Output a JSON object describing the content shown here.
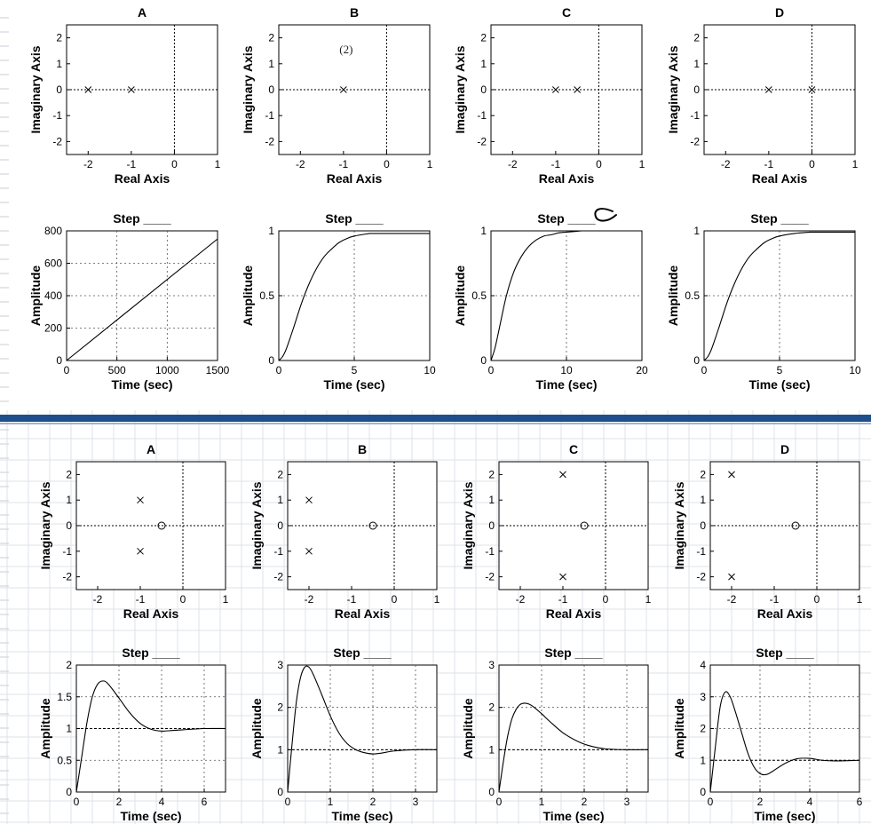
{
  "chart_data": [
    {
      "type": "scatter",
      "title": "A",
      "xlabel": "Real Axis",
      "ylabel": "Imaginary Axis",
      "xlim": [
        -2.5,
        1
      ],
      "ylim": [
        -2.5,
        2.5
      ],
      "xticks": [
        "-2",
        "-1",
        "0",
        "1"
      ],
      "yticks": [
        "2",
        "1",
        "0",
        "-1",
        "-2"
      ],
      "poles": [
        {
          "x": -2,
          "y": 0
        },
        {
          "x": -1,
          "y": 0
        }
      ],
      "zeros": [],
      "annotations": []
    },
    {
      "type": "scatter",
      "title": "B",
      "xlabel": "Real Axis",
      "ylabel": "Imaginary Axis",
      "xlim": [
        -2.5,
        1
      ],
      "ylim": [
        -2.5,
        2.5
      ],
      "xticks": [
        "-2",
        "-1",
        "0",
        "1"
      ],
      "yticks": [
        "2",
        "1",
        "0",
        "-1",
        "-2"
      ],
      "poles": [
        {
          "x": -1,
          "y": 0
        }
      ],
      "zeros": [],
      "annotations": [
        {
          "text": "(2)",
          "x": -1,
          "y": 1.4
        }
      ]
    },
    {
      "type": "scatter",
      "title": "C",
      "xlabel": "Real Axis",
      "ylabel": "Imaginary Axis",
      "xlim": [
        -2.5,
        1
      ],
      "ylim": [
        -2.5,
        2.5
      ],
      "xticks": [
        "-2",
        "-1",
        "0",
        "1"
      ],
      "yticks": [
        "2",
        "1",
        "0",
        "-1",
        "-2"
      ],
      "poles": [
        {
          "x": -1,
          "y": 0
        },
        {
          "x": -0.5,
          "y": 0
        }
      ],
      "zeros": [],
      "annotations": []
    },
    {
      "type": "scatter",
      "title": "D",
      "xlabel": "Real Axis",
      "ylabel": "Imaginary Axis",
      "xlim": [
        -2.5,
        1
      ],
      "ylim": [
        -2.5,
        2.5
      ],
      "xticks": [
        "-2",
        "-1",
        "0",
        "1"
      ],
      "yticks": [
        "2",
        "1",
        "0",
        "-1",
        "-2"
      ],
      "poles": [
        {
          "x": -1,
          "y": 0
        },
        {
          "x": 0,
          "y": 0
        }
      ],
      "zeros": [],
      "annotations": []
    },
    {
      "type": "line",
      "title": "Step ____",
      "xlabel": "Time (sec)",
      "ylabel": "Amplitude",
      "xlim": [
        0,
        1500
      ],
      "ylim": [
        0,
        800
      ],
      "xticks": [
        "0",
        "500",
        "1000",
        "1500"
      ],
      "yticks": [
        "800",
        "600",
        "400",
        "200",
        "0"
      ],
      "series": [
        {
          "x": [
            0,
            1500
          ],
          "y": [
            0,
            750
          ]
        }
      ],
      "reference": null
    },
    {
      "type": "line",
      "title": "Step ____",
      "xlabel": "Time (sec)",
      "ylabel": "Amplitude",
      "xlim": [
        0,
        10
      ],
      "ylim": [
        0,
        1
      ],
      "xticks": [
        "0",
        "5",
        "10"
      ],
      "yticks": [
        "1",
        "0.5",
        "0"
      ],
      "series": [
        {
          "x": [
            0,
            0.25,
            0.5,
            1,
            1.5,
            2,
            2.5,
            3,
            3.5,
            4,
            4.5,
            5,
            6
          ],
          "y": [
            0,
            0.03,
            0.09,
            0.26,
            0.44,
            0.59,
            0.71,
            0.8,
            0.86,
            0.91,
            0.94,
            0.96,
            0.98
          ]
        }
      ],
      "reference": 1
    },
    {
      "type": "line",
      "title": "Step ____",
      "xlabel": "Time (sec)",
      "ylabel": "Amplitude",
      "xlim": [
        0,
        20
      ],
      "ylim": [
        0,
        1
      ],
      "xticks": [
        "0",
        "10",
        "20"
      ],
      "yticks": [
        "1",
        "0.5",
        "0"
      ],
      "series": [
        {
          "x": [
            0,
            0.5,
            1,
            2,
            3,
            4,
            5,
            6,
            7,
            8,
            9,
            10,
            12
          ],
          "y": [
            0,
            0.09,
            0.22,
            0.49,
            0.68,
            0.8,
            0.88,
            0.93,
            0.96,
            0.97,
            0.985,
            0.99,
            1.0
          ]
        }
      ],
      "reference": 1
    },
    {
      "type": "line",
      "title": "Step ____",
      "xlabel": "Time (sec)",
      "ylabel": "Amplitude",
      "xlim": [
        0,
        10
      ],
      "ylim": [
        0,
        1
      ],
      "xticks": [
        "0",
        "5",
        "10"
      ],
      "yticks": [
        "1",
        "0.5",
        "0"
      ],
      "series": [
        {
          "x": [
            0,
            0.25,
            0.5,
            1,
            1.5,
            2,
            2.5,
            3,
            3.5,
            4,
            4.5,
            5,
            6,
            7
          ],
          "y": [
            0,
            0.03,
            0.09,
            0.26,
            0.44,
            0.59,
            0.71,
            0.8,
            0.86,
            0.91,
            0.94,
            0.96,
            0.98,
            0.99
          ]
        }
      ],
      "reference": 1
    },
    {
      "type": "scatter",
      "title": "A",
      "xlabel": "Real Axis",
      "ylabel": "Imaginary Axis",
      "xlim": [
        -2.5,
        1
      ],
      "ylim": [
        -2.5,
        2.5
      ],
      "xticks": [
        "-2",
        "-1",
        "0",
        "1"
      ],
      "yticks": [
        "2",
        "1",
        "0",
        "-1",
        "-2"
      ],
      "poles": [
        {
          "x": -1,
          "y": 1
        },
        {
          "x": -1,
          "y": -1
        }
      ],
      "zeros": [
        {
          "x": -0.5,
          "y": 0
        }
      ],
      "annotations": []
    },
    {
      "type": "scatter",
      "title": "B",
      "xlabel": "Real Axis",
      "ylabel": "Imaginary Axis",
      "xlim": [
        -2.5,
        1
      ],
      "ylim": [
        -2.5,
        2.5
      ],
      "xticks": [
        "-2",
        "-1",
        "0",
        "1"
      ],
      "yticks": [
        "2",
        "1",
        "0",
        "-1",
        "-2"
      ],
      "poles": [
        {
          "x": -2,
          "y": 1
        },
        {
          "x": -2,
          "y": -1
        }
      ],
      "zeros": [
        {
          "x": -0.5,
          "y": 0
        }
      ],
      "annotations": []
    },
    {
      "type": "scatter",
      "title": "C",
      "xlabel": "Real Axis",
      "ylabel": "Imaginary Axis",
      "xlim": [
        -2.5,
        1
      ],
      "ylim": [
        -2.5,
        2.5
      ],
      "xticks": [
        "-2",
        "-1",
        "0",
        "1"
      ],
      "yticks": [
        "2",
        "1",
        "0",
        "-1",
        "-2"
      ],
      "poles": [
        {
          "x": -1,
          "y": 2
        },
        {
          "x": -1,
          "y": -2
        }
      ],
      "zeros": [
        {
          "x": -0.5,
          "y": 0
        }
      ],
      "annotations": []
    },
    {
      "type": "scatter",
      "title": "D",
      "xlabel": "Real Axis",
      "ylabel": "Imaginary Axis",
      "xlim": [
        -2.5,
        1
      ],
      "ylim": [
        -2.5,
        2.5
      ],
      "xticks": [
        "-2",
        "-1",
        "0",
        "1"
      ],
      "yticks": [
        "2",
        "1",
        "0",
        "-1",
        "-2"
      ],
      "poles": [
        {
          "x": -2,
          "y": 2
        },
        {
          "x": -2,
          "y": -2
        }
      ],
      "zeros": [
        {
          "x": -0.5,
          "y": 0
        }
      ],
      "annotations": []
    },
    {
      "type": "line",
      "title": "Step ____",
      "xlabel": "Time (sec)",
      "ylabel": "Amplitude",
      "xlim": [
        0,
        7
      ],
      "ylim": [
        0,
        2
      ],
      "xticks": [
        "0",
        "2",
        "4",
        "6"
      ],
      "yticks": [
        "2",
        "1.5",
        "1",
        "0.5",
        "0"
      ],
      "series": [
        {
          "x": [
            0,
            0.25,
            0.5,
            0.75,
            1,
            1.25,
            1.5,
            2,
            2.5,
            3,
            3.5,
            4,
            4.5,
            5,
            6,
            7
          ],
          "y": [
            0,
            0.55,
            1.1,
            1.5,
            1.7,
            1.75,
            1.7,
            1.48,
            1.25,
            1.08,
            0.99,
            0.96,
            0.97,
            0.98,
            1,
            1
          ]
        }
      ],
      "reference": 1
    },
    {
      "type": "line",
      "title": "Step ____",
      "xlabel": "Time (sec)",
      "ylabel": "Amplitude",
      "xlim": [
        0,
        3.5
      ],
      "ylim": [
        0,
        3
      ],
      "xticks": [
        "0",
        "1",
        "2",
        "3"
      ],
      "yticks": [
        "3",
        "2",
        "1",
        "0"
      ],
      "series": [
        {
          "x": [
            0,
            0.1,
            0.2,
            0.3,
            0.4,
            0.5,
            0.6,
            0.8,
            1,
            1.2,
            1.4,
            1.6,
            1.8,
            2,
            2.2,
            2.5,
            3,
            3.5
          ],
          "y": [
            0,
            1.1,
            2.1,
            2.7,
            2.95,
            2.95,
            2.78,
            2.3,
            1.8,
            1.4,
            1.14,
            1.0,
            0.93,
            0.9,
            0.92,
            0.97,
            1,
            1
          ]
        }
      ],
      "reference": 1
    },
    {
      "type": "line",
      "title": "Step ____",
      "xlabel": "Time (sec)",
      "ylabel": "Amplitude",
      "xlim": [
        0,
        3.5
      ],
      "ylim": [
        0,
        3
      ],
      "xticks": [
        "0",
        "1",
        "2",
        "3"
      ],
      "yticks": [
        "3",
        "2",
        "1",
        "0"
      ],
      "series": [
        {
          "x": [
            0,
            0.1,
            0.2,
            0.3,
            0.4,
            0.5,
            0.6,
            0.7,
            0.8,
            1,
            1.2,
            1.5,
            1.8,
            2.1,
            2.5,
            3,
            3.5
          ],
          "y": [
            0,
            0.7,
            1.3,
            1.72,
            1.95,
            2.07,
            2.1,
            2.08,
            2.02,
            1.85,
            1.66,
            1.4,
            1.22,
            1.1,
            1.02,
            1,
            1
          ]
        }
      ],
      "reference": 1
    },
    {
      "type": "line",
      "title": "Step ____",
      "xlabel": "Time (sec)",
      "ylabel": "Amplitude",
      "xlim": [
        0,
        6
      ],
      "ylim": [
        0,
        4
      ],
      "xticks": [
        "0",
        "2",
        "4",
        "6"
      ],
      "yticks": [
        "4",
        "3",
        "2",
        "1",
        "0"
      ],
      "series": [
        {
          "x": [
            0,
            0.2,
            0.4,
            0.6,
            0.8,
            1,
            1.25,
            1.5,
            1.75,
            2,
            2.25,
            2.5,
            3,
            3.5,
            4,
            4.5,
            5,
            6
          ],
          "y": [
            0,
            1.4,
            2.7,
            3.15,
            3.0,
            2.55,
            1.9,
            1.25,
            0.8,
            0.58,
            0.55,
            0.65,
            0.9,
            1.05,
            1.06,
            1.0,
            0.98,
            1
          ]
        }
      ],
      "reference": 1
    }
  ]
}
